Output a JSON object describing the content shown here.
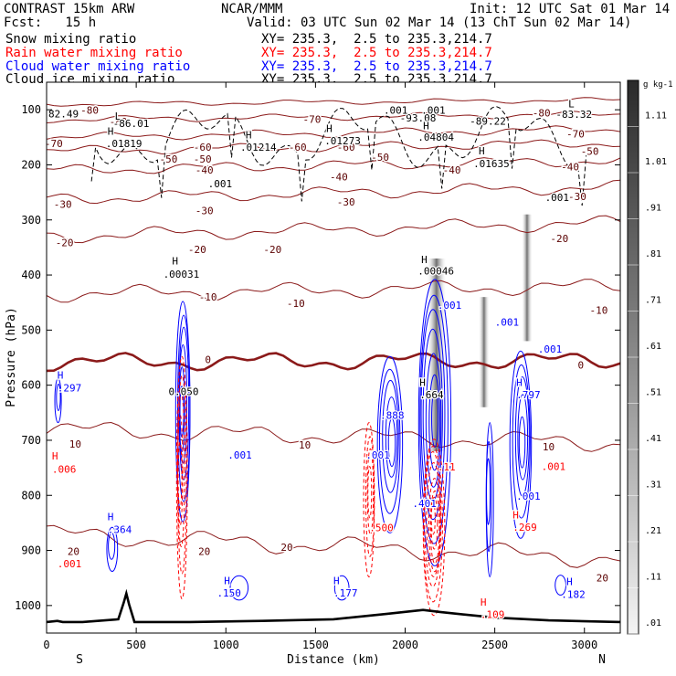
{
  "header": {
    "model": "CONTRAST 15km ARW",
    "org": "NCAR/MMM",
    "init": "Init: 12 UTC Sat 01 Mar 14",
    "fcst": "Fcst:   15 h",
    "valid": "Valid: 03 UTC Sun 02 Mar 14 (13 ChT Sun 02 Mar 14)"
  },
  "fields": [
    {
      "name": "Snow mixing ratio",
      "xy": "XY= 235.3,  2.5 to 235.3,214.7",
      "color": "#000000"
    },
    {
      "name": "Rain water mixing ratio",
      "xy": "XY= 235.3,  2.5 to 235.3,214.7",
      "color": "#ff0000"
    },
    {
      "name": "Cloud water mixing ratio",
      "xy": "XY= 235.3,  2.5 to 235.3,214.7",
      "color": "#0000ff"
    },
    {
      "name": "Cloud ice mixing ratio",
      "xy": "XY= 235.3,  2.5 to 235.3,214.7",
      "color": "#000000"
    }
  ],
  "chart_data": {
    "type": "contour-cross-section",
    "xlabel": "Distance (km)",
    "ylabel": "Pressure (hPa)",
    "xlim": [
      0,
      3200
    ],
    "ylim": [
      1050,
      50
    ],
    "x_ticks": [
      0,
      500,
      1000,
      1500,
      2000,
      2500,
      3000
    ],
    "y_ticks": [
      100,
      200,
      300,
      400,
      500,
      600,
      700,
      800,
      900,
      1000
    ],
    "end_labels": {
      "left": "S",
      "right": "N"
    },
    "colorbar": {
      "unit": "g kg-1",
      "labels": [
        "1.11",
        "1.01",
        ".91",
        ".81",
        ".71",
        ".61",
        ".51",
        ".41",
        ".31",
        ".21",
        ".11",
        ".01"
      ]
    },
    "temperature_contours": [
      {
        "label": "-80",
        "pts": [
          [
            0,
            90
          ],
          [
            3200,
            82
          ]
        ]
      },
      {
        "label": "-70",
        "pts": [
          [
            0,
            118
          ],
          [
            3200,
            108
          ]
        ]
      },
      {
        "label": "-60",
        "pts": [
          [
            0,
            150
          ],
          [
            3200,
            135
          ]
        ]
      },
      {
        "label": "-50",
        "pts": [
          [
            0,
            175
          ],
          [
            3200,
            160
          ]
        ]
      },
      {
        "label": "-40",
        "pts": [
          [
            0,
            210
          ],
          [
            3200,
            192
          ]
        ]
      },
      {
        "label": "-30",
        "pts": [
          [
            0,
            262
          ],
          [
            3200,
            240
          ]
        ]
      },
      {
        "label": "-20",
        "pts": [
          [
            0,
            330
          ],
          [
            3200,
            305
          ]
        ]
      },
      {
        "label": "-10",
        "pts": [
          [
            0,
            435
          ],
          [
            3200,
            420
          ]
        ]
      },
      {
        "label": "0",
        "pts": [
          [
            0,
            558
          ],
          [
            3200,
            555
          ]
        ]
      },
      {
        "label": "10",
        "pts": [
          [
            0,
            680
          ],
          [
            3200,
            705
          ]
        ]
      },
      {
        "label": "20",
        "pts": [
          [
            0,
            870
          ],
          [
            3200,
            915
          ]
        ]
      }
    ],
    "temperature_labels": [
      {
        "x": 240,
        "y": 107,
        "text": "-80"
      },
      {
        "x": 400,
        "y": 128,
        "text": "-80"
      },
      {
        "x": 1480,
        "y": 124,
        "text": "-70"
      },
      {
        "x": 2760,
        "y": 112,
        "text": "-80"
      },
      {
        "x": 40,
        "y": 168,
        "text": "-70"
      },
      {
        "x": 2950,
        "y": 150,
        "text": "-70"
      },
      {
        "x": 870,
        "y": 174,
        "text": "-60"
      },
      {
        "x": 1400,
        "y": 174,
        "text": "-60"
      },
      {
        "x": 1670,
        "y": 174,
        "text": "-60"
      },
      {
        "x": 680,
        "y": 196,
        "text": "-50"
      },
      {
        "x": 870,
        "y": 196,
        "text": "-50"
      },
      {
        "x": 1860,
        "y": 193,
        "text": "-50"
      },
      {
        "x": 3030,
        "y": 182,
        "text": "-50"
      },
      {
        "x": 880,
        "y": 216,
        "text": "-40"
      },
      {
        "x": 1630,
        "y": 228,
        "text": "-40"
      },
      {
        "x": 2260,
        "y": 216,
        "text": "-40"
      },
      {
        "x": 2920,
        "y": 210,
        "text": "-40"
      },
      {
        "x": 90,
        "y": 278,
        "text": "-30"
      },
      {
        "x": 880,
        "y": 290,
        "text": "-30"
      },
      {
        "x": 1670,
        "y": 274,
        "text": "-30"
      },
      {
        "x": 2960,
        "y": 264,
        "text": "-30"
      },
      {
        "x": 100,
        "y": 348,
        "text": "-20"
      },
      {
        "x": 840,
        "y": 360,
        "text": "-20"
      },
      {
        "x": 1260,
        "y": 360,
        "text": "-20"
      },
      {
        "x": 2860,
        "y": 340,
        "text": "-20"
      },
      {
        "x": 900,
        "y": 446,
        "text": "-10"
      },
      {
        "x": 1390,
        "y": 458,
        "text": "-10"
      },
      {
        "x": 3080,
        "y": 470,
        "text": "-10"
      },
      {
        "x": 900,
        "y": 560,
        "text": "0"
      },
      {
        "x": 2980,
        "y": 570,
        "text": "0"
      },
      {
        "x": 160,
        "y": 713,
        "text": "10"
      },
      {
        "x": 1440,
        "y": 715,
        "text": "10"
      },
      {
        "x": 2800,
        "y": 718,
        "text": "10"
      },
      {
        "x": 150,
        "y": 908,
        "text": "20"
      },
      {
        "x": 880,
        "y": 908,
        "text": "20"
      },
      {
        "x": 1340,
        "y": 901,
        "text": "20"
      },
      {
        "x": 3100,
        "y": 956,
        "text": "20"
      }
    ],
    "field_labels": [
      {
        "x": 60,
        "y": 588,
        "text": "H",
        "color": "#0000ff"
      },
      {
        "x": 60,
        "y": 611,
        "text": ".297",
        "color": "#0000ff"
      },
      {
        "x": 340,
        "y": 845,
        "text": "H",
        "color": "#0000ff"
      },
      {
        "x": 340,
        "y": 868,
        "text": ".364",
        "color": "#0000ff"
      },
      {
        "x": 1010,
        "y": 733,
        "text": ".001",
        "color": "#0000ff"
      },
      {
        "x": 990,
        "y": 961,
        "text": "H",
        "color": "#0000ff"
      },
      {
        "x": 950,
        "y": 984,
        "text": ".150",
        "color": "#0000ff"
      },
      {
        "x": 1600,
        "y": 961,
        "text": "H",
        "color": "#0000ff"
      },
      {
        "x": 1600,
        "y": 984,
        "text": ".177",
        "color": "#0000ff"
      },
      {
        "x": 1860,
        "y": 661,
        "text": ".888",
        "color": "#0000ff"
      },
      {
        "x": 1780,
        "y": 733,
        "text": ".001",
        "color": "#0000ff"
      },
      {
        "x": 2040,
        "y": 821,
        "text": ".401",
        "color": "#0000ff"
      },
      {
        "x": 2180,
        "y": 461,
        "text": ".001",
        "color": "#0000ff"
      },
      {
        "x": 2500,
        "y": 492,
        "text": ".001",
        "color": "#0000ff"
      },
      {
        "x": 2740,
        "y": 541,
        "text": ".001",
        "color": "#0000ff"
      },
      {
        "x": 2620,
        "y": 601,
        "text": "H",
        "color": "#0000ff"
      },
      {
        "x": 2620,
        "y": 624,
        "text": ".797",
        "color": "#0000ff"
      },
      {
        "x": 2620,
        "y": 808,
        "text": ".001",
        "color": "#0000ff"
      },
      {
        "x": 2900,
        "y": 963,
        "text": "H",
        "color": "#0000ff"
      },
      {
        "x": 2870,
        "y": 986,
        "text": ".182",
        "color": "#0000ff"
      },
      {
        "x": 2080,
        "y": 601,
        "text": "H",
        "color": "#000000"
      },
      {
        "x": 2080,
        "y": 624,
        "text": ".664",
        "color": "#000000"
      },
      {
        "x": 680,
        "y": 618,
        "text": "0.050",
        "color": "#000000"
      },
      {
        "x": 30,
        "y": 735,
        "text": "H",
        "color": "#ff0000"
      },
      {
        "x": 30,
        "y": 759,
        "text": ".006",
        "color": "#ff0000"
      },
      {
        "x": 60,
        "y": 931,
        "text": ".001",
        "color": "#ff0000"
      },
      {
        "x": 1800,
        "y": 865,
        "text": ".500",
        "color": "#ff0000"
      },
      {
        "x": 2600,
        "y": 842,
        "text": "H",
        "color": "#ff0000"
      },
      {
        "x": 2600,
        "y": 864,
        "text": ".269",
        "color": "#ff0000"
      },
      {
        "x": 2760,
        "y": 754,
        "text": ".001",
        "color": "#ff0000"
      },
      {
        "x": 2420,
        "y": 1000,
        "text": "H",
        "color": "#ff0000"
      },
      {
        "x": 2420,
        "y": 1023,
        "text": ".109",
        "color": "#ff0000"
      },
      {
        "x": 2180,
        "y": 755,
        "text": ".11",
        "color": "#ff0000"
      },
      {
        "x": 380,
        "y": 118,
        "text": "L",
        "color": "#000000"
      },
      {
        "x": 1930,
        "y": 106,
        "text": "L",
        "color": "#000000"
      },
      {
        "x": 2910,
        "y": 96,
        "text": "L",
        "color": "#000000"
      },
      {
        "x": -60,
        "y": 114,
        "text": "82.49",
        "color": "#000000"
      },
      {
        "x": 370,
        "y": 131,
        "text": "-86.01",
        "color": "#000000"
      },
      {
        "x": 1970,
        "y": 121,
        "text": "-93.08",
        "color": "#000000"
      },
      {
        "x": 2360,
        "y": 127,
        "text": "-89.22",
        "color": "#000000"
      },
      {
        "x": 2840,
        "y": 115,
        "text": "-83.32",
        "color": "#000000"
      },
      {
        "x": 1880,
        "y": 107,
        "text": ".001",
        "color": "#000000"
      },
      {
        "x": 2090,
        "y": 107,
        "text": ".001",
        "color": "#000000"
      },
      {
        "x": 340,
        "y": 145,
        "text": "H",
        "color": "#000000"
      },
      {
        "x": 330,
        "y": 168,
        "text": ".01819",
        "color": "#000000"
      },
      {
        "x": 1110,
        "y": 152,
        "text": "H",
        "color": "#000000"
      },
      {
        "x": 1080,
        "y": 174,
        "text": ".01214",
        "color": "#000000"
      },
      {
        "x": 1560,
        "y": 140,
        "text": "H",
        "color": "#000000"
      },
      {
        "x": 1550,
        "y": 163,
        "text": ".01273",
        "color": "#000000"
      },
      {
        "x": 2100,
        "y": 135,
        "text": "H",
        "color": "#000000"
      },
      {
        "x": 2070,
        "y": 156,
        "text": ".04804",
        "color": "#000000"
      },
      {
        "x": 2410,
        "y": 181,
        "text": "H",
        "color": "#000000"
      },
      {
        "x": 2380,
        "y": 204,
        "text": ".01635",
        "color": "#000000"
      },
      {
        "x": 900,
        "y": 241,
        "text": ".001",
        "color": "#000000"
      },
      {
        "x": 2780,
        "y": 266,
        "text": ".001",
        "color": "#000000"
      },
      {
        "x": 700,
        "y": 381,
        "text": "H",
        "color": "#000000"
      },
      {
        "x": 650,
        "y": 405,
        "text": ".00031",
        "color": "#000000"
      },
      {
        "x": 2090,
        "y": 378,
        "text": "H",
        "color": "#000000"
      },
      {
        "x": 2070,
        "y": 399,
        "text": ".00046",
        "color": "#000000"
      }
    ],
    "terrain": [
      [
        0,
        1030
      ],
      [
        60,
        1028
      ],
      [
        90,
        1030
      ],
      [
        200,
        1030
      ],
      [
        400,
        1025
      ],
      [
        430,
        995
      ],
      [
        445,
        978
      ],
      [
        460,
        998
      ],
      [
        490,
        1030
      ],
      [
        800,
        1030
      ],
      [
        1200,
        1028
      ],
      [
        1600,
        1025
      ],
      [
        1900,
        1015
      ],
      [
        2100,
        1008
      ],
      [
        2200,
        1012
      ],
      [
        2500,
        1022
      ],
      [
        2800,
        1027
      ],
      [
        3200,
        1030
      ]
    ]
  }
}
